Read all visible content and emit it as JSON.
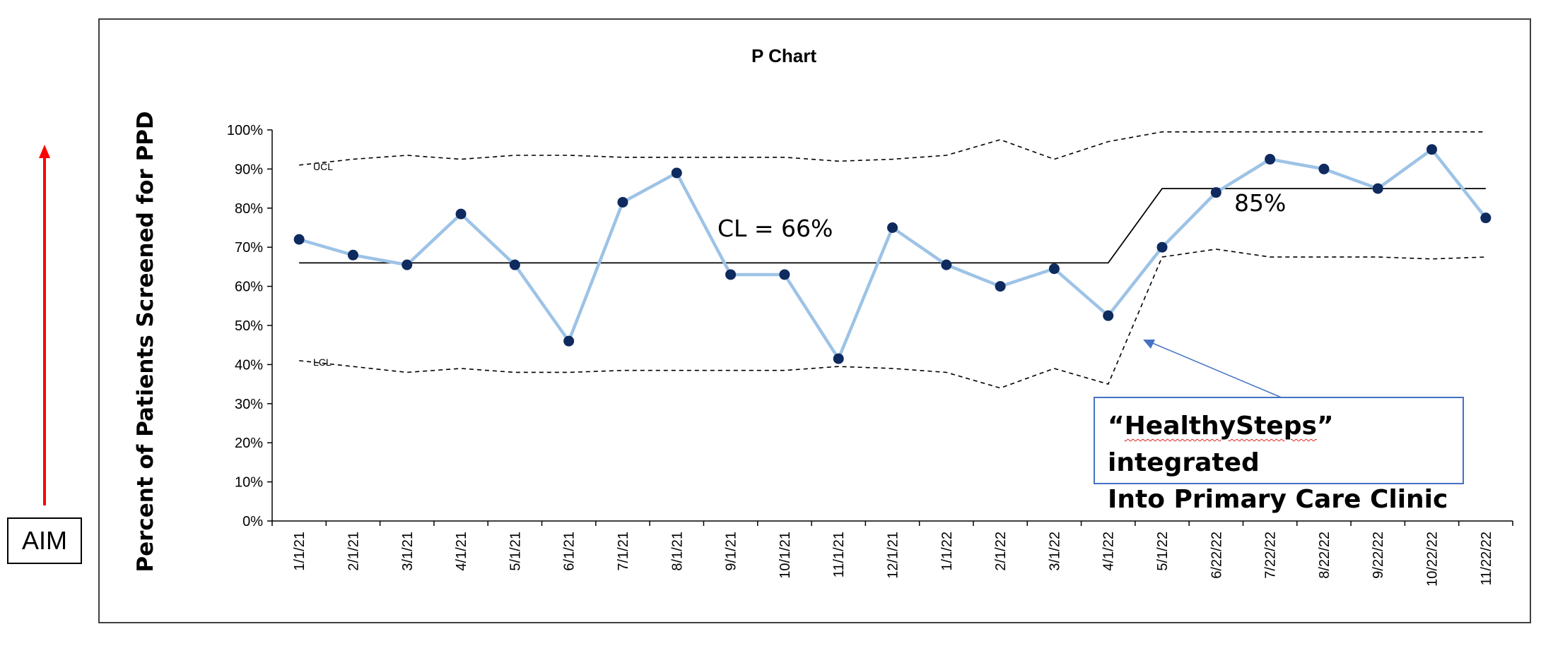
{
  "chart_data": {
    "type": "line",
    "title": "P Chart",
    "ylabel": "Percent  of Patients Screened for PPD",
    "xlabel": "",
    "ylim": [
      0,
      100
    ],
    "y_ticks": [
      "0%",
      "10%",
      "20%",
      "30%",
      "40%",
      "50%",
      "60%",
      "70%",
      "80%",
      "90%",
      "100%"
    ],
    "categories": [
      "1/1/21",
      "2/1/21",
      "3/1/21",
      "4/1/21",
      "5/1/21",
      "6/1/21",
      "7/1/21",
      "8/1/21",
      "9/1/21",
      "10/1/21",
      "11/1/21",
      "12/1/21",
      "1/1/22",
      "2/1/22",
      "3/1/22",
      "4/1/22",
      "5/1/22",
      "6/22/22",
      "7/22/22",
      "8/22/22",
      "9/22/22",
      "10/22/22",
      "11/22/22"
    ],
    "series": [
      {
        "values": [
          72,
          68,
          65.5,
          78.5,
          65.5,
          46,
          81.5,
          89,
          63,
          63,
          41.5,
          75,
          65.5,
          60,
          64.5,
          52.5,
          70,
          84,
          92.5,
          90,
          85,
          95,
          77.5
        ],
        "color": "#9DC3E6",
        "marker_color": "#0E2A5E"
      },
      {
        "name": "UCL",
        "values": [
          91,
          92.5,
          93.5,
          92.5,
          93.5,
          93.5,
          93,
          93,
          93,
          93,
          92,
          92.5,
          93.5,
          97.5,
          92.5,
          97,
          99.5,
          99.5,
          99.5,
          99.5,
          99.5,
          99.5,
          99.5
        ],
        "style": "dashed"
      },
      {
        "name": "LCL",
        "values": [
          41,
          39.5,
          38,
          39,
          38,
          38,
          38.5,
          38.5,
          38.5,
          38.5,
          39.5,
          39,
          38,
          34,
          39,
          35,
          67.5,
          69.5,
          67.5,
          67.5,
          67.5,
          67,
          67.5
        ],
        "style": "dashed"
      },
      {
        "name": "CL",
        "values": [
          66,
          66,
          66,
          66,
          66,
          66,
          66,
          66,
          66,
          66,
          66,
          66,
          66,
          66,
          66,
          66,
          85,
          85,
          85,
          85,
          85,
          85,
          85
        ],
        "style": "solid"
      }
    ],
    "grid": false,
    "annotations": {
      "cl_label": "CL = 66%",
      "cl2_label": "85%",
      "ucl_label": "UCL",
      "lcl_label": "LCL"
    }
  },
  "aim_label": "AIM",
  "callout": {
    "line1_quote_open": "“",
    "line1_word": "HealthySteps",
    "line1_rest": "” integrated",
    "line2": "Into Primary Care Clinic"
  }
}
